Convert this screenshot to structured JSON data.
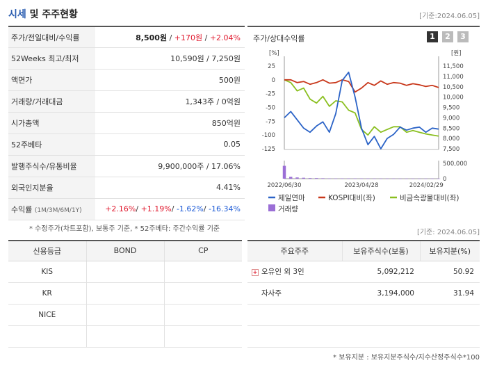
{
  "header": {
    "title_part1": "시세",
    "title_part2": " 및 주주현황",
    "date": "[기준:2024.06.05]"
  },
  "info_rows": [
    {
      "label": "주가/전일대비/수익률"
    },
    {
      "label": "52Weeks 최고/최저",
      "value": "10,590원 / 7,250원"
    },
    {
      "label": "액면가",
      "value": "500원"
    },
    {
      "label": "거래량/거래대금",
      "value": "1,343주 / 0억원"
    },
    {
      "label": "시가총액",
      "value": "850억원"
    },
    {
      "label": "52주베타",
      "value": "0.05"
    },
    {
      "label": "발행주식수/유통비율",
      "value": "9,900,000주 / 17.06%"
    },
    {
      "label": "외국인지분율",
      "value": "4.41%"
    },
    {
      "label": "수익률",
      "sublabel": "(1M/3M/6M/1Y)"
    }
  ],
  "price": {
    "current": "8,500원",
    "change": "+170원",
    "rate": "+2.04%",
    "sep": " / "
  },
  "returns": {
    "m1": "+2.16%",
    "m3": "+1.19%",
    "m6": "-1.62%",
    "y1": "-16.34%"
  },
  "note1": "* 수정주가(차트포함), 보통주 기준, * 52주베타: 주간수익률 기준",
  "note1_date": "[기준: 2024.06.05]",
  "chart_data": {
    "type": "line",
    "title": "주가/상대수익률",
    "pages": [
      "1",
      "2",
      "3"
    ],
    "left_axis": {
      "unit": "[%]",
      "ticks": [
        "25",
        "0",
        "-25",
        "-50",
        "-75",
        "-100",
        "-125"
      ],
      "range": [
        -125,
        25
      ]
    },
    "right_axis": {
      "unit": "[원]",
      "ticks": [
        "11,500",
        "11,000",
        "10,500",
        "10,000",
        "9,500",
        "9,000",
        "8,500",
        "8,000",
        "7,500"
      ],
      "range": [
        7500,
        11500
      ]
    },
    "volume_axis": {
      "ticks": [
        "500,000",
        "0"
      ],
      "range": [
        0,
        500000
      ]
    },
    "x_ticks": [
      "2022/06/30",
      "2023/04/28",
      "2024/02/29"
    ],
    "series": [
      {
        "name": "제일연마",
        "color": "#2b63c7",
        "axis": "right",
        "values": [
          9000,
          9300,
          8900,
          8500,
          8300,
          8600,
          8800,
          8300,
          9200,
          10800,
          11200,
          10000,
          8500,
          7700,
          8100,
          7500,
          8000,
          8200,
          8550,
          8400,
          8500,
          8550,
          8300,
          8500,
          8450
        ]
      },
      {
        "name": "KOSPI대비(좌)",
        "color": "#c8371a",
        "axis": "left",
        "values": [
          0,
          0,
          -5,
          -3,
          -8,
          -5,
          0,
          -6,
          -5,
          0,
          -3,
          -22,
          -15,
          -5,
          -10,
          -2,
          -8,
          -5,
          -6,
          -10,
          -7,
          -9,
          -12,
          -10,
          -14
        ]
      },
      {
        "name": "비금속광물대비(좌)",
        "color": "#8abf1f",
        "axis": "left",
        "values": [
          0,
          -5,
          -20,
          -15,
          -35,
          -42,
          -30,
          -48,
          -38,
          -40,
          -55,
          -60,
          -90,
          -100,
          -85,
          -95,
          -90,
          -85,
          -85,
          -95,
          -92,
          -95,
          -98,
          -100,
          -102
        ]
      }
    ],
    "volume_name": "거래량",
    "volume_color": "#9b6fd6",
    "volume": [
      420000,
      60000,
      40000,
      30000,
      20000,
      20000,
      15000,
      10000,
      8000,
      10000,
      10000,
      10000,
      8000,
      8000,
      6000,
      6000,
      6000,
      6000,
      5000,
      5000,
      5000,
      5000,
      5000,
      5000,
      5000
    ]
  },
  "credit": {
    "headers": [
      "신용등급",
      "BOND",
      "CP"
    ],
    "rows": [
      {
        "agency": "KIS",
        "bond": "",
        "cp": ""
      },
      {
        "agency": "KR",
        "bond": "",
        "cp": ""
      },
      {
        "agency": "NICE",
        "bond": "",
        "cp": ""
      },
      {
        "agency": "",
        "bond": "",
        "cp": ""
      }
    ]
  },
  "shareholders": {
    "headers": [
      "주요주주",
      "보유주식수(보통)",
      "보유지분(%)"
    ],
    "rows": [
      {
        "name": "오유인 외 3인",
        "shares": "5,092,212",
        "pct": "50.92",
        "expand": "+"
      },
      {
        "name": "자사주",
        "shares": "3,194,000",
        "pct": "31.94"
      },
      {
        "name": "",
        "shares": "",
        "pct": ""
      },
      {
        "name": "",
        "shares": "",
        "pct": ""
      }
    ]
  },
  "note2": "* 보유지분 : 보유지분주식수/지수산정주식수*100"
}
